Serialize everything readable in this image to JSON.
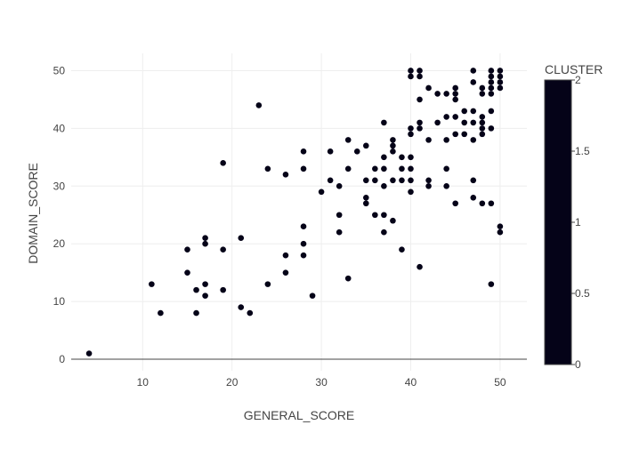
{
  "chart_data": {
    "type": "scatter",
    "title": "",
    "xlabel": "GENERAL_SCORE",
    "ylabel": "DOMAIN_SCORE",
    "xlim": [
      2,
      53
    ],
    "ylim": [
      -2,
      53
    ],
    "x_ticks": [
      10,
      20,
      30,
      40,
      50
    ],
    "y_ticks": [
      0,
      10,
      20,
      30,
      40,
      50
    ],
    "grid": true,
    "marker_color": "#0d0887",
    "colorbar": {
      "title": "CLUSTER",
      "range": [
        0,
        2
      ],
      "ticks": [
        "0",
        "0.5",
        "1",
        "1.5",
        "2"
      ],
      "color": "#050318"
    },
    "points": [
      {
        "x": 4,
        "y": 1
      },
      {
        "x": 11,
        "y": 13
      },
      {
        "x": 12,
        "y": 8
      },
      {
        "x": 15,
        "y": 19
      },
      {
        "x": 15,
        "y": 15
      },
      {
        "x": 16,
        "y": 12
      },
      {
        "x": 16,
        "y": 8
      },
      {
        "x": 17,
        "y": 21
      },
      {
        "x": 17,
        "y": 20
      },
      {
        "x": 17,
        "y": 13
      },
      {
        "x": 17,
        "y": 11
      },
      {
        "x": 19,
        "y": 34
      },
      {
        "x": 19,
        "y": 19
      },
      {
        "x": 19,
        "y": 12
      },
      {
        "x": 21,
        "y": 21
      },
      {
        "x": 21,
        "y": 9
      },
      {
        "x": 22,
        "y": 8
      },
      {
        "x": 23,
        "y": 44
      },
      {
        "x": 24,
        "y": 33
      },
      {
        "x": 24,
        "y": 13
      },
      {
        "x": 26,
        "y": 32
      },
      {
        "x": 26,
        "y": 18
      },
      {
        "x": 26,
        "y": 15
      },
      {
        "x": 28,
        "y": 36
      },
      {
        "x": 28,
        "y": 33
      },
      {
        "x": 28,
        "y": 23
      },
      {
        "x": 28,
        "y": 20
      },
      {
        "x": 28,
        "y": 18
      },
      {
        "x": 29,
        "y": 11
      },
      {
        "x": 30,
        "y": 29
      },
      {
        "x": 31,
        "y": 36
      },
      {
        "x": 31,
        "y": 31
      },
      {
        "x": 32,
        "y": 30
      },
      {
        "x": 32,
        "y": 25
      },
      {
        "x": 32,
        "y": 22
      },
      {
        "x": 33,
        "y": 38
      },
      {
        "x": 33,
        "y": 33
      },
      {
        "x": 33,
        "y": 14
      },
      {
        "x": 34,
        "y": 36
      },
      {
        "x": 35,
        "y": 37
      },
      {
        "x": 35,
        "y": 31
      },
      {
        "x": 35,
        "y": 28
      },
      {
        "x": 35,
        "y": 27
      },
      {
        "x": 36,
        "y": 33
      },
      {
        "x": 36,
        "y": 31
      },
      {
        "x": 36,
        "y": 25
      },
      {
        "x": 37,
        "y": 41
      },
      {
        "x": 37,
        "y": 35
      },
      {
        "x": 37,
        "y": 33
      },
      {
        "x": 37,
        "y": 30
      },
      {
        "x": 37,
        "y": 25
      },
      {
        "x": 37,
        "y": 22
      },
      {
        "x": 38,
        "y": 38
      },
      {
        "x": 38,
        "y": 37
      },
      {
        "x": 38,
        "y": 36
      },
      {
        "x": 38,
        "y": 31
      },
      {
        "x": 38,
        "y": 24
      },
      {
        "x": 39,
        "y": 35
      },
      {
        "x": 39,
        "y": 33
      },
      {
        "x": 39,
        "y": 31
      },
      {
        "x": 39,
        "y": 19
      },
      {
        "x": 40,
        "y": 50
      },
      {
        "x": 40,
        "y": 49
      },
      {
        "x": 40,
        "y": 40
      },
      {
        "x": 40,
        "y": 39
      },
      {
        "x": 40,
        "y": 35
      },
      {
        "x": 40,
        "y": 33
      },
      {
        "x": 40,
        "y": 31
      },
      {
        "x": 40,
        "y": 29
      },
      {
        "x": 41,
        "y": 50
      },
      {
        "x": 41,
        "y": 49
      },
      {
        "x": 41,
        "y": 45
      },
      {
        "x": 41,
        "y": 41
      },
      {
        "x": 41,
        "y": 40
      },
      {
        "x": 41,
        "y": 16
      },
      {
        "x": 42,
        "y": 47
      },
      {
        "x": 42,
        "y": 38
      },
      {
        "x": 42,
        "y": 31
      },
      {
        "x": 42,
        "y": 30
      },
      {
        "x": 43,
        "y": 46
      },
      {
        "x": 43,
        "y": 41
      },
      {
        "x": 44,
        "y": 46
      },
      {
        "x": 44,
        "y": 42
      },
      {
        "x": 44,
        "y": 38
      },
      {
        "x": 44,
        "y": 33
      },
      {
        "x": 44,
        "y": 30
      },
      {
        "x": 45,
        "y": 47
      },
      {
        "x": 45,
        "y": 46
      },
      {
        "x": 45,
        "y": 45
      },
      {
        "x": 45,
        "y": 42
      },
      {
        "x": 45,
        "y": 39
      },
      {
        "x": 45,
        "y": 27
      },
      {
        "x": 46,
        "y": 43
      },
      {
        "x": 46,
        "y": 41
      },
      {
        "x": 46,
        "y": 39
      },
      {
        "x": 47,
        "y": 50
      },
      {
        "x": 47,
        "y": 48
      },
      {
        "x": 47,
        "y": 43
      },
      {
        "x": 47,
        "y": 41
      },
      {
        "x": 47,
        "y": 38
      },
      {
        "x": 47,
        "y": 31
      },
      {
        "x": 47,
        "y": 28
      },
      {
        "x": 48,
        "y": 47
      },
      {
        "x": 48,
        "y": 46
      },
      {
        "x": 48,
        "y": 42
      },
      {
        "x": 48,
        "y": 41
      },
      {
        "x": 48,
        "y": 40
      },
      {
        "x": 48,
        "y": 39
      },
      {
        "x": 48,
        "y": 27
      },
      {
        "x": 49,
        "y": 50
      },
      {
        "x": 49,
        "y": 49
      },
      {
        "x": 49,
        "y": 48
      },
      {
        "x": 49,
        "y": 47
      },
      {
        "x": 49,
        "y": 46
      },
      {
        "x": 49,
        "y": 43
      },
      {
        "x": 49,
        "y": 40
      },
      {
        "x": 49,
        "y": 27
      },
      {
        "x": 49,
        "y": 13
      },
      {
        "x": 50,
        "y": 50
      },
      {
        "x": 50,
        "y": 49
      },
      {
        "x": 50,
        "y": 48
      },
      {
        "x": 50,
        "y": 47
      },
      {
        "x": 50,
        "y": 23
      },
      {
        "x": 50,
        "y": 22
      }
    ]
  }
}
